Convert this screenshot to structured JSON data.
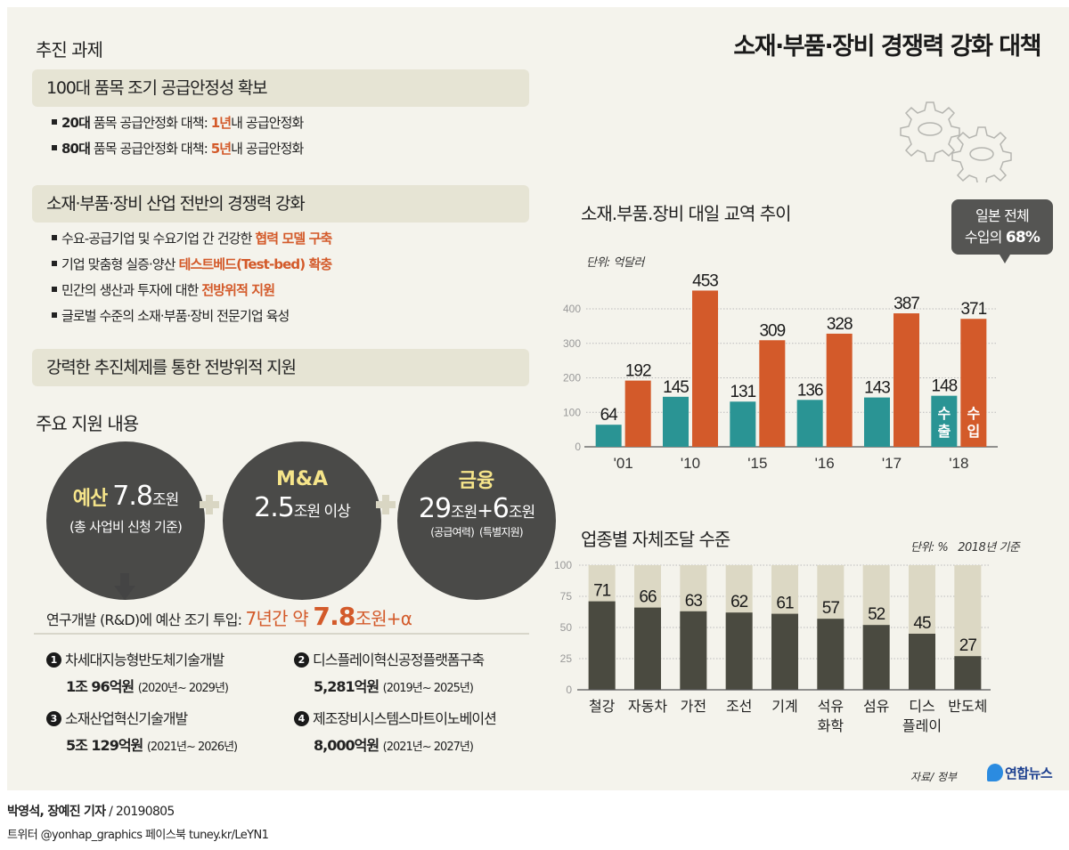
{
  "title": "소재·부품·장비 경쟁력 강화 대책",
  "left": {
    "heading": "추진 과제",
    "sections": [
      {
        "band": "100대 품목 조기 공급안정성 확보",
        "bullets": [
          {
            "bold": "20대",
            "pre": " 품목 공급안정화 대책: ",
            "hl": "1년",
            "post": "내 공급안정화"
          },
          {
            "bold": "80대",
            "pre": " 품목 공급안정화 대책: ",
            "hl": "5년",
            "post": "내 공급안정화"
          }
        ]
      },
      {
        "band": "소재·부품·장비 산업 전반의 경쟁력 강화",
        "bullets": [
          {
            "bold": "",
            "pre": "수요-공급기업 및 수요기업 간 건강한 ",
            "hl": "협력 모델 구축",
            "post": ""
          },
          {
            "bold": "",
            "pre": "기업 맞춤형 실증·양산 ",
            "hl": "테스트베드(Test-bed) 확충",
            "post": ""
          },
          {
            "bold": "",
            "pre": "민간의 생산과 투자에 대한 ",
            "hl": "전방위적 지원",
            "post": ""
          },
          {
            "bold": "",
            "pre": "글로벌 수준의 소재·부품·장비 전문기업 육성",
            "hl": "",
            "post": ""
          }
        ]
      },
      {
        "band": "강력한 추진체제를 통한 전방위적 지원",
        "bullets": []
      }
    ],
    "support": {
      "heading": "주요 지원 내용",
      "circles": [
        {
          "label": "예산",
          "value": "7.8",
          "unit": "조원",
          "sub": "(총 사업비 신청 기준)"
        },
        {
          "label": "M&A",
          "value": "2.5",
          "unit": "조원 이상",
          "sub": ""
        },
        {
          "label": "금융",
          "value1": "29",
          "unit1": "조원",
          "plus": "+",
          "value2": "6",
          "unit2": "조원",
          "sub1": "(공급여력)",
          "sub2": "(특별지원)"
        }
      ],
      "rd": {
        "prefix": "연구개발 (R&D)에 예산 조기 투입: ",
        "hl_pre": "7년간 약 ",
        "hl_num": "7.8",
        "hl_post": "조원+α"
      },
      "projects": [
        {
          "no": "1",
          "name": "차세대지능형반도체기술개발",
          "amount": "1조 96억원",
          "period": "(2020년~ 2029년)"
        },
        {
          "no": "2",
          "name": "디스플레이혁신공정플랫폼구축",
          "amount": "5,281억원",
          "period": "(2019년~ 2025년)"
        },
        {
          "no": "3",
          "name": "소재산업혁신기술개발",
          "amount": "5조 129억원",
          "period": "(2021년~ 2026년)"
        },
        {
          "no": "4",
          "name": "제조장비시스템스마트이노베이션",
          "amount": "8,000억원",
          "period": "(2021년~ 2027년)"
        }
      ]
    }
  },
  "colors": {
    "export": "#2a9494",
    "import": "#d35a2a",
    "self": "#4a4a40",
    "self_rest": "#dcd8c4",
    "accent": "#d35a2a"
  },
  "chart_data": [
    {
      "type": "bar",
      "title": "소재.부품.장비 대일 교역 추이",
      "unit": "단위: 억달러",
      "categories": [
        "'01",
        "'10",
        "'15",
        "'16",
        "'17",
        "'18"
      ],
      "series": [
        {
          "name": "수출",
          "values": [
            64,
            145,
            131,
            136,
            143,
            148
          ]
        },
        {
          "name": "수입",
          "values": [
            192,
            453,
            309,
            328,
            387,
            371
          ]
        }
      ],
      "yticks": [
        0,
        100,
        200,
        300,
        400
      ],
      "ylim": [
        0,
        480
      ],
      "grid": true,
      "legend_in_bars": [
        "수출",
        "수입"
      ],
      "annotation": {
        "line1": "일본 전체",
        "line2_pre": "수입의 ",
        "line2_bold": "68%",
        "target": "'18"
      }
    },
    {
      "type": "bar",
      "title": "업종별 자체조달 수준",
      "unit": "단위: %",
      "note": "2018년 기준",
      "categories": [
        "철강",
        "자동차",
        "가전",
        "조선",
        "기계",
        "석유\n화학",
        "섬유",
        "디스\n플레이",
        "반도체"
      ],
      "values": [
        71,
        66,
        63,
        62,
        61,
        57,
        52,
        45,
        27
      ],
      "yticks": [
        0,
        25,
        50,
        75,
        100
      ],
      "ylim": [
        0,
        100
      ],
      "grid": true
    }
  ],
  "footer": {
    "source": "자료/ 정부",
    "logo": "연합뉴스",
    "byline_bold": "박영석, 장예진 기자",
    "byline_date": " / 20190805",
    "social": "트위터 @yonhap_graphics  페이스북 tuney.kr/LeYN1"
  }
}
